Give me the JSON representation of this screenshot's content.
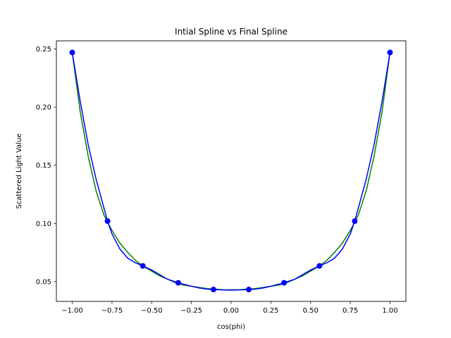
{
  "chart_data": {
    "type": "line",
    "title": "Intial Spline vs Final Spline",
    "xlabel": "cos(phi)",
    "ylabel": "Scattered Light Value",
    "xlim": [
      -1.1,
      1.1
    ],
    "ylim": [
      0.033,
      0.257
    ],
    "xticks": [
      -1.0,
      -0.75,
      -0.5,
      -0.25,
      0.0,
      0.25,
      0.5,
      0.75,
      1.0
    ],
    "xtick_labels": [
      "−1.00",
      "−0.75",
      "−0.50",
      "−0.25",
      "0.00",
      "0.25",
      "0.50",
      "0.75",
      "1.00"
    ],
    "yticks": [
      0.05,
      0.1,
      0.15,
      0.2,
      0.25
    ],
    "ytick_labels": [
      "0.05",
      "0.10",
      "0.15",
      "0.20",
      "0.25"
    ],
    "grid": false,
    "series": [
      {
        "color": "#008000",
        "x": [
          -1.0,
          -0.95,
          -0.9,
          -0.85,
          -0.8,
          -0.75,
          -0.7,
          -0.65,
          -0.6,
          -0.55,
          -0.5,
          -0.45,
          -0.4,
          -0.35,
          -0.3,
          -0.25,
          -0.2,
          -0.15,
          -0.1,
          -0.05,
          0.0,
          0.05,
          0.1,
          0.15,
          0.2,
          0.25,
          0.3,
          0.35,
          0.4,
          0.45,
          0.5,
          0.55,
          0.6,
          0.65,
          0.7,
          0.75,
          0.8,
          0.85,
          0.9,
          0.95,
          1.0
        ],
        "y": [
          0.247,
          0.196,
          0.158,
          0.128,
          0.107,
          0.094,
          0.083,
          0.075,
          0.068,
          0.063,
          0.059,
          0.055,
          0.052,
          0.049,
          0.047,
          0.046,
          0.045,
          0.044,
          0.0435,
          0.043,
          0.043,
          0.043,
          0.0435,
          0.044,
          0.045,
          0.046,
          0.047,
          0.049,
          0.052,
          0.055,
          0.059,
          0.063,
          0.068,
          0.075,
          0.083,
          0.094,
          0.107,
          0.128,
          0.158,
          0.196,
          0.247
        ]
      },
      {
        "color": "#0000ff",
        "x": [
          -1.0,
          -0.95,
          -0.9,
          -0.85,
          -0.8,
          -0.778,
          -0.75,
          -0.7,
          -0.65,
          -0.6,
          -0.556,
          -0.5,
          -0.45,
          -0.4,
          -0.333,
          -0.3,
          -0.25,
          -0.2,
          -0.15,
          -0.111,
          -0.05,
          0.0,
          0.05,
          0.111,
          0.15,
          0.2,
          0.25,
          0.3,
          0.333,
          0.4,
          0.45,
          0.5,
          0.556,
          0.6,
          0.65,
          0.7,
          0.75,
          0.778,
          0.8,
          0.85,
          0.9,
          0.95,
          1.0
        ],
        "y": [
          0.247,
          0.205,
          0.168,
          0.138,
          0.113,
          0.102,
          0.091,
          0.078,
          0.07,
          0.066,
          0.0635,
          0.06,
          0.056,
          0.052,
          0.049,
          0.0478,
          0.046,
          0.0445,
          0.0435,
          0.0432,
          0.0428,
          0.0427,
          0.0428,
          0.0432,
          0.0435,
          0.0445,
          0.046,
          0.0478,
          0.049,
          0.052,
          0.056,
          0.06,
          0.0635,
          0.066,
          0.07,
          0.078,
          0.091,
          0.102,
          0.113,
          0.138,
          0.168,
          0.205,
          0.247
        ]
      }
    ],
    "markers": {
      "color": "#0000ff",
      "x": [
        -1.0,
        -0.778,
        -0.556,
        -0.333,
        -0.111,
        0.111,
        0.333,
        0.556,
        0.778,
        1.0
      ],
      "y": [
        0.247,
        0.102,
        0.0635,
        0.049,
        0.0432,
        0.0432,
        0.049,
        0.0635,
        0.102,
        0.247
      ]
    }
  }
}
